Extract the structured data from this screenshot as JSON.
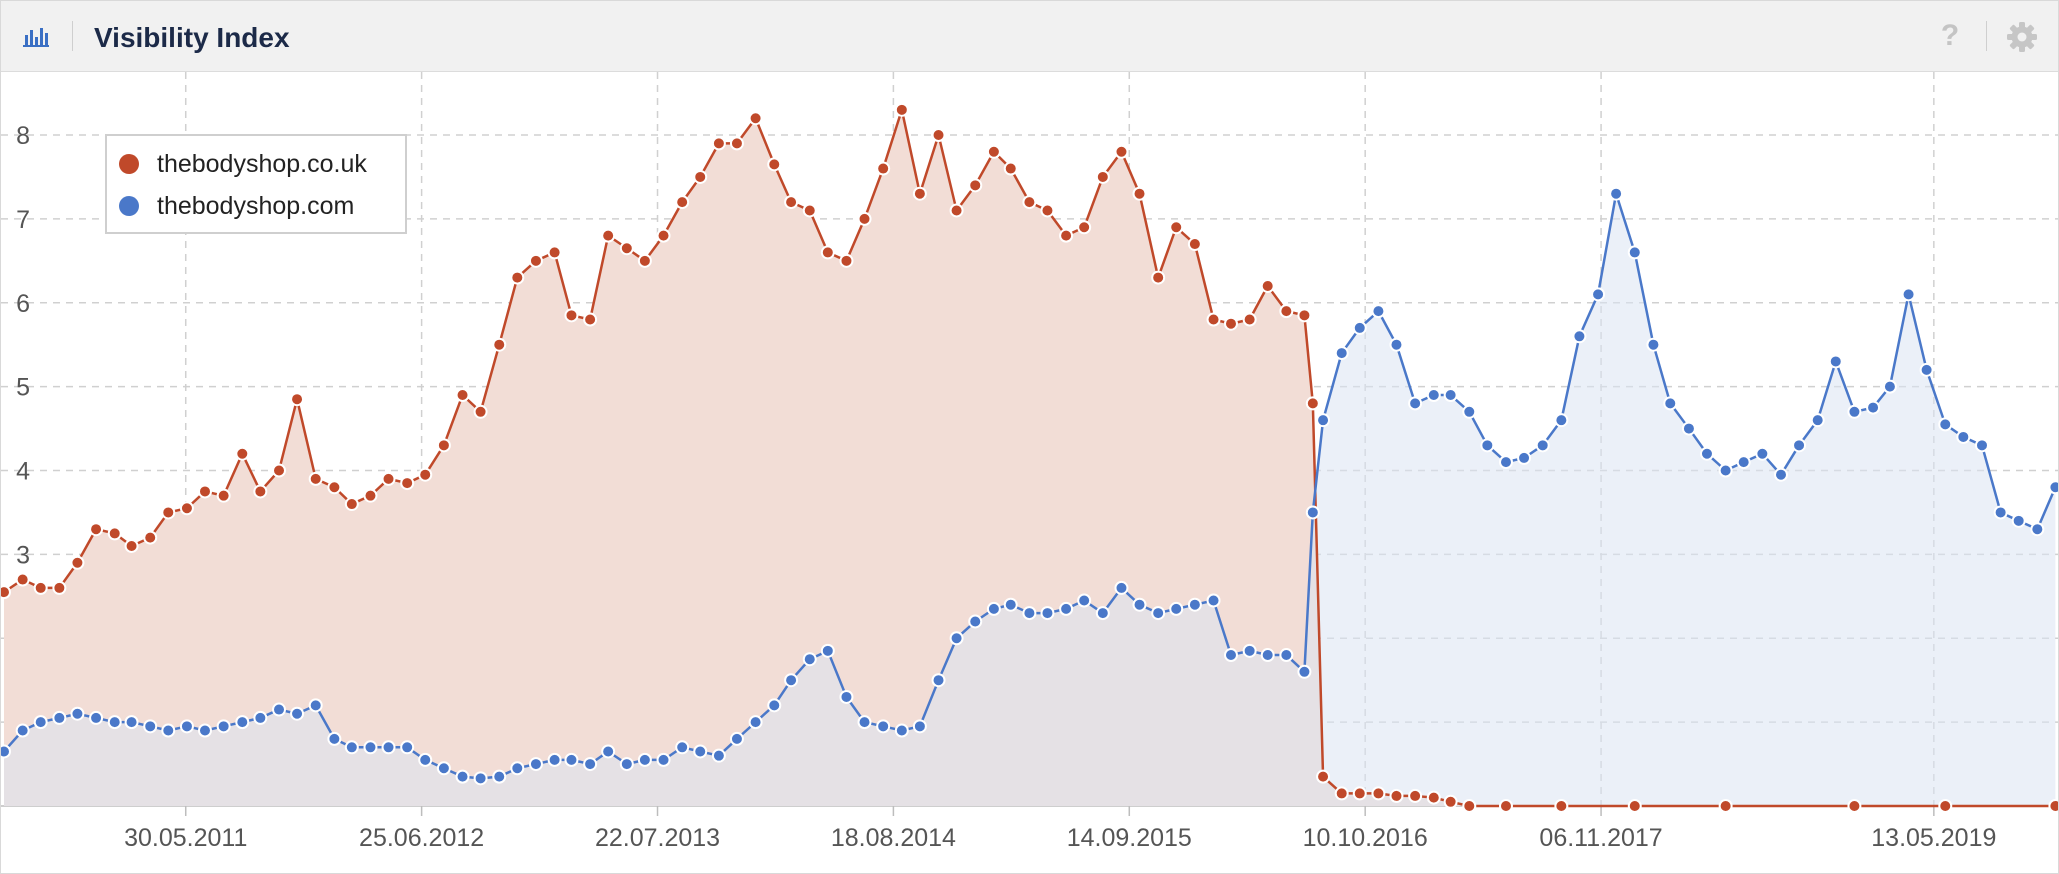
{
  "header": {
    "title": "Visibility Index",
    "chart_icon": "bar-chart-icon",
    "help_label": "?",
    "settings_icon": "gear-icon"
  },
  "colors": {
    "uk_line": "#c0492a",
    "uk_fill": "#f2ddd6",
    "com_line": "#4a78c9",
    "com_fill": "#dbe3f2",
    "overlap_fill": "#cdc5d2",
    "grid": "#d0d0d0"
  },
  "chart_data": {
    "type": "area",
    "title": "Visibility Index",
    "xlabel": "",
    "ylabel": "",
    "legend_position": "top-left",
    "grid": true,
    "ylim": [
      0,
      8.5
    ],
    "yticks": [
      1,
      2,
      3,
      4,
      5,
      6,
      7,
      8
    ],
    "xlim": [
      "2010-08-01",
      "2019-12-02"
    ],
    "xtick_dates": [
      "2011-05-30",
      "2012-06-25",
      "2013-07-22",
      "2014-08-18",
      "2015-09-14",
      "2016-10-10",
      "2017-11-06",
      "2019-05-13"
    ],
    "xtick_labels": [
      "30.05.2011",
      "25.06.2012",
      "22.07.2013",
      "18.08.2014",
      "14.09.2015",
      "10.10.2016",
      "06.11.2017",
      "13.05.2019"
    ],
    "series": [
      {
        "name": "thebodyshop.co.uk",
        "color": "#c0492a",
        "data": [
          [
            "2010-08-01",
            2.55
          ],
          [
            "2010-09-01",
            2.7
          ],
          [
            "2010-10-01",
            2.6
          ],
          [
            "2010-11-01",
            2.6
          ],
          [
            "2010-12-01",
            2.9
          ],
          [
            "2011-01-01",
            3.3
          ],
          [
            "2011-02-01",
            3.25
          ],
          [
            "2011-03-01",
            3.1
          ],
          [
            "2011-04-01",
            3.2
          ],
          [
            "2011-05-01",
            3.5
          ],
          [
            "2011-06-01",
            3.55
          ],
          [
            "2011-07-01",
            3.75
          ],
          [
            "2011-08-01",
            3.7
          ],
          [
            "2011-09-01",
            4.2
          ],
          [
            "2011-10-01",
            3.75
          ],
          [
            "2011-11-01",
            4.0
          ],
          [
            "2011-12-01",
            4.85
          ],
          [
            "2012-01-01",
            3.9
          ],
          [
            "2012-02-01",
            3.8
          ],
          [
            "2012-03-01",
            3.6
          ],
          [
            "2012-04-01",
            3.7
          ],
          [
            "2012-05-01",
            3.9
          ],
          [
            "2012-06-01",
            3.85
          ],
          [
            "2012-07-01",
            3.95
          ],
          [
            "2012-08-01",
            4.3
          ],
          [
            "2012-09-01",
            4.9
          ],
          [
            "2012-10-01",
            4.7
          ],
          [
            "2012-11-01",
            5.5
          ],
          [
            "2012-12-01",
            6.3
          ],
          [
            "2013-01-01",
            6.5
          ],
          [
            "2013-02-01",
            6.6
          ],
          [
            "2013-03-01",
            5.85
          ],
          [
            "2013-04-01",
            5.8
          ],
          [
            "2013-05-01",
            6.8
          ],
          [
            "2013-06-01",
            6.65
          ],
          [
            "2013-07-01",
            6.5
          ],
          [
            "2013-08-01",
            6.8
          ],
          [
            "2013-09-01",
            7.2
          ],
          [
            "2013-10-01",
            7.5
          ],
          [
            "2013-11-01",
            7.9
          ],
          [
            "2013-12-01",
            7.9
          ],
          [
            "2014-01-01",
            8.2
          ],
          [
            "2014-02-01",
            7.65
          ],
          [
            "2014-03-01",
            7.2
          ],
          [
            "2014-04-01",
            7.1
          ],
          [
            "2014-05-01",
            6.6
          ],
          [
            "2014-06-01",
            6.5
          ],
          [
            "2014-07-01",
            7.0
          ],
          [
            "2014-08-01",
            7.6
          ],
          [
            "2014-09-01",
            8.3
          ],
          [
            "2014-10-01",
            7.3
          ],
          [
            "2014-11-01",
            8.0
          ],
          [
            "2014-12-01",
            7.1
          ],
          [
            "2015-01-01",
            7.4
          ],
          [
            "2015-02-01",
            7.8
          ],
          [
            "2015-03-01",
            7.6
          ],
          [
            "2015-04-01",
            7.2
          ],
          [
            "2015-05-01",
            7.1
          ],
          [
            "2015-06-01",
            6.8
          ],
          [
            "2015-07-01",
            6.9
          ],
          [
            "2015-08-01",
            7.5
          ],
          [
            "2015-09-01",
            7.8
          ],
          [
            "2015-10-01",
            7.3
          ],
          [
            "2015-11-01",
            6.3
          ],
          [
            "2015-12-01",
            6.9
          ],
          [
            "2016-01-01",
            6.7
          ],
          [
            "2016-02-01",
            5.8
          ],
          [
            "2016-03-01",
            5.75
          ],
          [
            "2016-04-01",
            5.8
          ],
          [
            "2016-05-01",
            6.2
          ],
          [
            "2016-06-01",
            5.9
          ],
          [
            "2016-07-01",
            5.85
          ],
          [
            "2016-07-15",
            4.8
          ],
          [
            "2016-08-01",
            0.35
          ],
          [
            "2016-09-01",
            0.15
          ],
          [
            "2016-10-01",
            0.15
          ],
          [
            "2016-11-01",
            0.15
          ],
          [
            "2016-12-01",
            0.12
          ],
          [
            "2017-01-01",
            0.12
          ],
          [
            "2017-02-01",
            0.1
          ],
          [
            "2017-03-01",
            0.05
          ],
          [
            "2017-04-01",
            0.0
          ],
          [
            "2017-06-01",
            0.0
          ],
          [
            "2017-09-01",
            0.0
          ],
          [
            "2018-01-01",
            0.0
          ],
          [
            "2018-06-01",
            0.0
          ],
          [
            "2019-01-01",
            0.0
          ],
          [
            "2019-06-01",
            0.0
          ],
          [
            "2019-12-01",
            0.0
          ]
        ]
      },
      {
        "name": "thebodyshop.com",
        "color": "#4a78c9",
        "data": [
          [
            "2010-08-01",
            0.65
          ],
          [
            "2010-09-01",
            0.9
          ],
          [
            "2010-10-01",
            1.0
          ],
          [
            "2010-11-01",
            1.05
          ],
          [
            "2010-12-01",
            1.1
          ],
          [
            "2011-01-01",
            1.05
          ],
          [
            "2011-02-01",
            1.0
          ],
          [
            "2011-03-01",
            1.0
          ],
          [
            "2011-04-01",
            0.95
          ],
          [
            "2011-05-01",
            0.9
          ],
          [
            "2011-06-01",
            0.95
          ],
          [
            "2011-07-01",
            0.9
          ],
          [
            "2011-08-01",
            0.95
          ],
          [
            "2011-09-01",
            1.0
          ],
          [
            "2011-10-01",
            1.05
          ],
          [
            "2011-11-01",
            1.15
          ],
          [
            "2011-12-01",
            1.1
          ],
          [
            "2012-01-01",
            1.2
          ],
          [
            "2012-02-01",
            0.8
          ],
          [
            "2012-03-01",
            0.7
          ],
          [
            "2012-04-01",
            0.7
          ],
          [
            "2012-05-01",
            0.7
          ],
          [
            "2012-06-01",
            0.7
          ],
          [
            "2012-07-01",
            0.55
          ],
          [
            "2012-08-01",
            0.45
          ],
          [
            "2012-09-01",
            0.35
          ],
          [
            "2012-10-01",
            0.33
          ],
          [
            "2012-11-01",
            0.35
          ],
          [
            "2012-12-01",
            0.45
          ],
          [
            "2013-01-01",
            0.5
          ],
          [
            "2013-02-01",
            0.55
          ],
          [
            "2013-03-01",
            0.55
          ],
          [
            "2013-04-01",
            0.5
          ],
          [
            "2013-05-01",
            0.65
          ],
          [
            "2013-06-01",
            0.5
          ],
          [
            "2013-07-01",
            0.55
          ],
          [
            "2013-08-01",
            0.55
          ],
          [
            "2013-09-01",
            0.7
          ],
          [
            "2013-10-01",
            0.65
          ],
          [
            "2013-11-01",
            0.6
          ],
          [
            "2013-12-01",
            0.8
          ],
          [
            "2014-01-01",
            1.0
          ],
          [
            "2014-02-01",
            1.2
          ],
          [
            "2014-03-01",
            1.5
          ],
          [
            "2014-04-01",
            1.75
          ],
          [
            "2014-05-01",
            1.85
          ],
          [
            "2014-06-01",
            1.3
          ],
          [
            "2014-07-01",
            1.0
          ],
          [
            "2014-08-01",
            0.95
          ],
          [
            "2014-09-01",
            0.9
          ],
          [
            "2014-10-01",
            0.95
          ],
          [
            "2014-11-01",
            1.5
          ],
          [
            "2014-12-01",
            2.0
          ],
          [
            "2015-01-01",
            2.2
          ],
          [
            "2015-02-01",
            2.35
          ],
          [
            "2015-03-01",
            2.4
          ],
          [
            "2015-04-01",
            2.3
          ],
          [
            "2015-05-01",
            2.3
          ],
          [
            "2015-06-01",
            2.35
          ],
          [
            "2015-07-01",
            2.45
          ],
          [
            "2015-08-01",
            2.3
          ],
          [
            "2015-09-01",
            2.6
          ],
          [
            "2015-10-01",
            2.4
          ],
          [
            "2015-11-01",
            2.3
          ],
          [
            "2015-12-01",
            2.35
          ],
          [
            "2016-01-01",
            2.4
          ],
          [
            "2016-02-01",
            2.45
          ],
          [
            "2016-03-01",
            1.8
          ],
          [
            "2016-04-01",
            1.85
          ],
          [
            "2016-05-01",
            1.8
          ],
          [
            "2016-06-01",
            1.8
          ],
          [
            "2016-07-01",
            1.6
          ],
          [
            "2016-07-15",
            3.5
          ],
          [
            "2016-08-01",
            4.6
          ],
          [
            "2016-09-01",
            5.4
          ],
          [
            "2016-10-01",
            5.7
          ],
          [
            "2016-11-01",
            5.9
          ],
          [
            "2016-12-01",
            5.5
          ],
          [
            "2017-01-01",
            4.8
          ],
          [
            "2017-02-01",
            4.9
          ],
          [
            "2017-03-01",
            4.9
          ],
          [
            "2017-04-01",
            4.7
          ],
          [
            "2017-05-01",
            4.3
          ],
          [
            "2017-06-01",
            4.1
          ],
          [
            "2017-07-01",
            4.15
          ],
          [
            "2017-08-01",
            4.3
          ],
          [
            "2017-09-01",
            4.6
          ],
          [
            "2017-10-01",
            5.6
          ],
          [
            "2017-11-01",
            6.1
          ],
          [
            "2017-12-01",
            7.3
          ],
          [
            "2018-01-01",
            6.6
          ],
          [
            "2018-02-01",
            5.5
          ],
          [
            "2018-03-01",
            4.8
          ],
          [
            "2018-04-01",
            4.5
          ],
          [
            "2018-05-01",
            4.2
          ],
          [
            "2018-06-01",
            4.0
          ],
          [
            "2018-07-01",
            4.1
          ],
          [
            "2018-08-01",
            4.2
          ],
          [
            "2018-09-01",
            3.95
          ],
          [
            "2018-10-01",
            4.3
          ],
          [
            "2018-11-01",
            4.6
          ],
          [
            "2018-12-01",
            5.3
          ],
          [
            "2019-01-01",
            4.7
          ],
          [
            "2019-02-01",
            4.75
          ],
          [
            "2019-03-01",
            5.0
          ],
          [
            "2019-04-01",
            6.1
          ],
          [
            "2019-05-01",
            5.2
          ],
          [
            "2019-06-01",
            4.55
          ],
          [
            "2019-07-01",
            4.4
          ],
          [
            "2019-08-01",
            4.3
          ],
          [
            "2019-09-01",
            3.5
          ],
          [
            "2019-10-01",
            3.4
          ],
          [
            "2019-11-01",
            3.3
          ],
          [
            "2019-12-01",
            3.8
          ]
        ]
      }
    ]
  }
}
